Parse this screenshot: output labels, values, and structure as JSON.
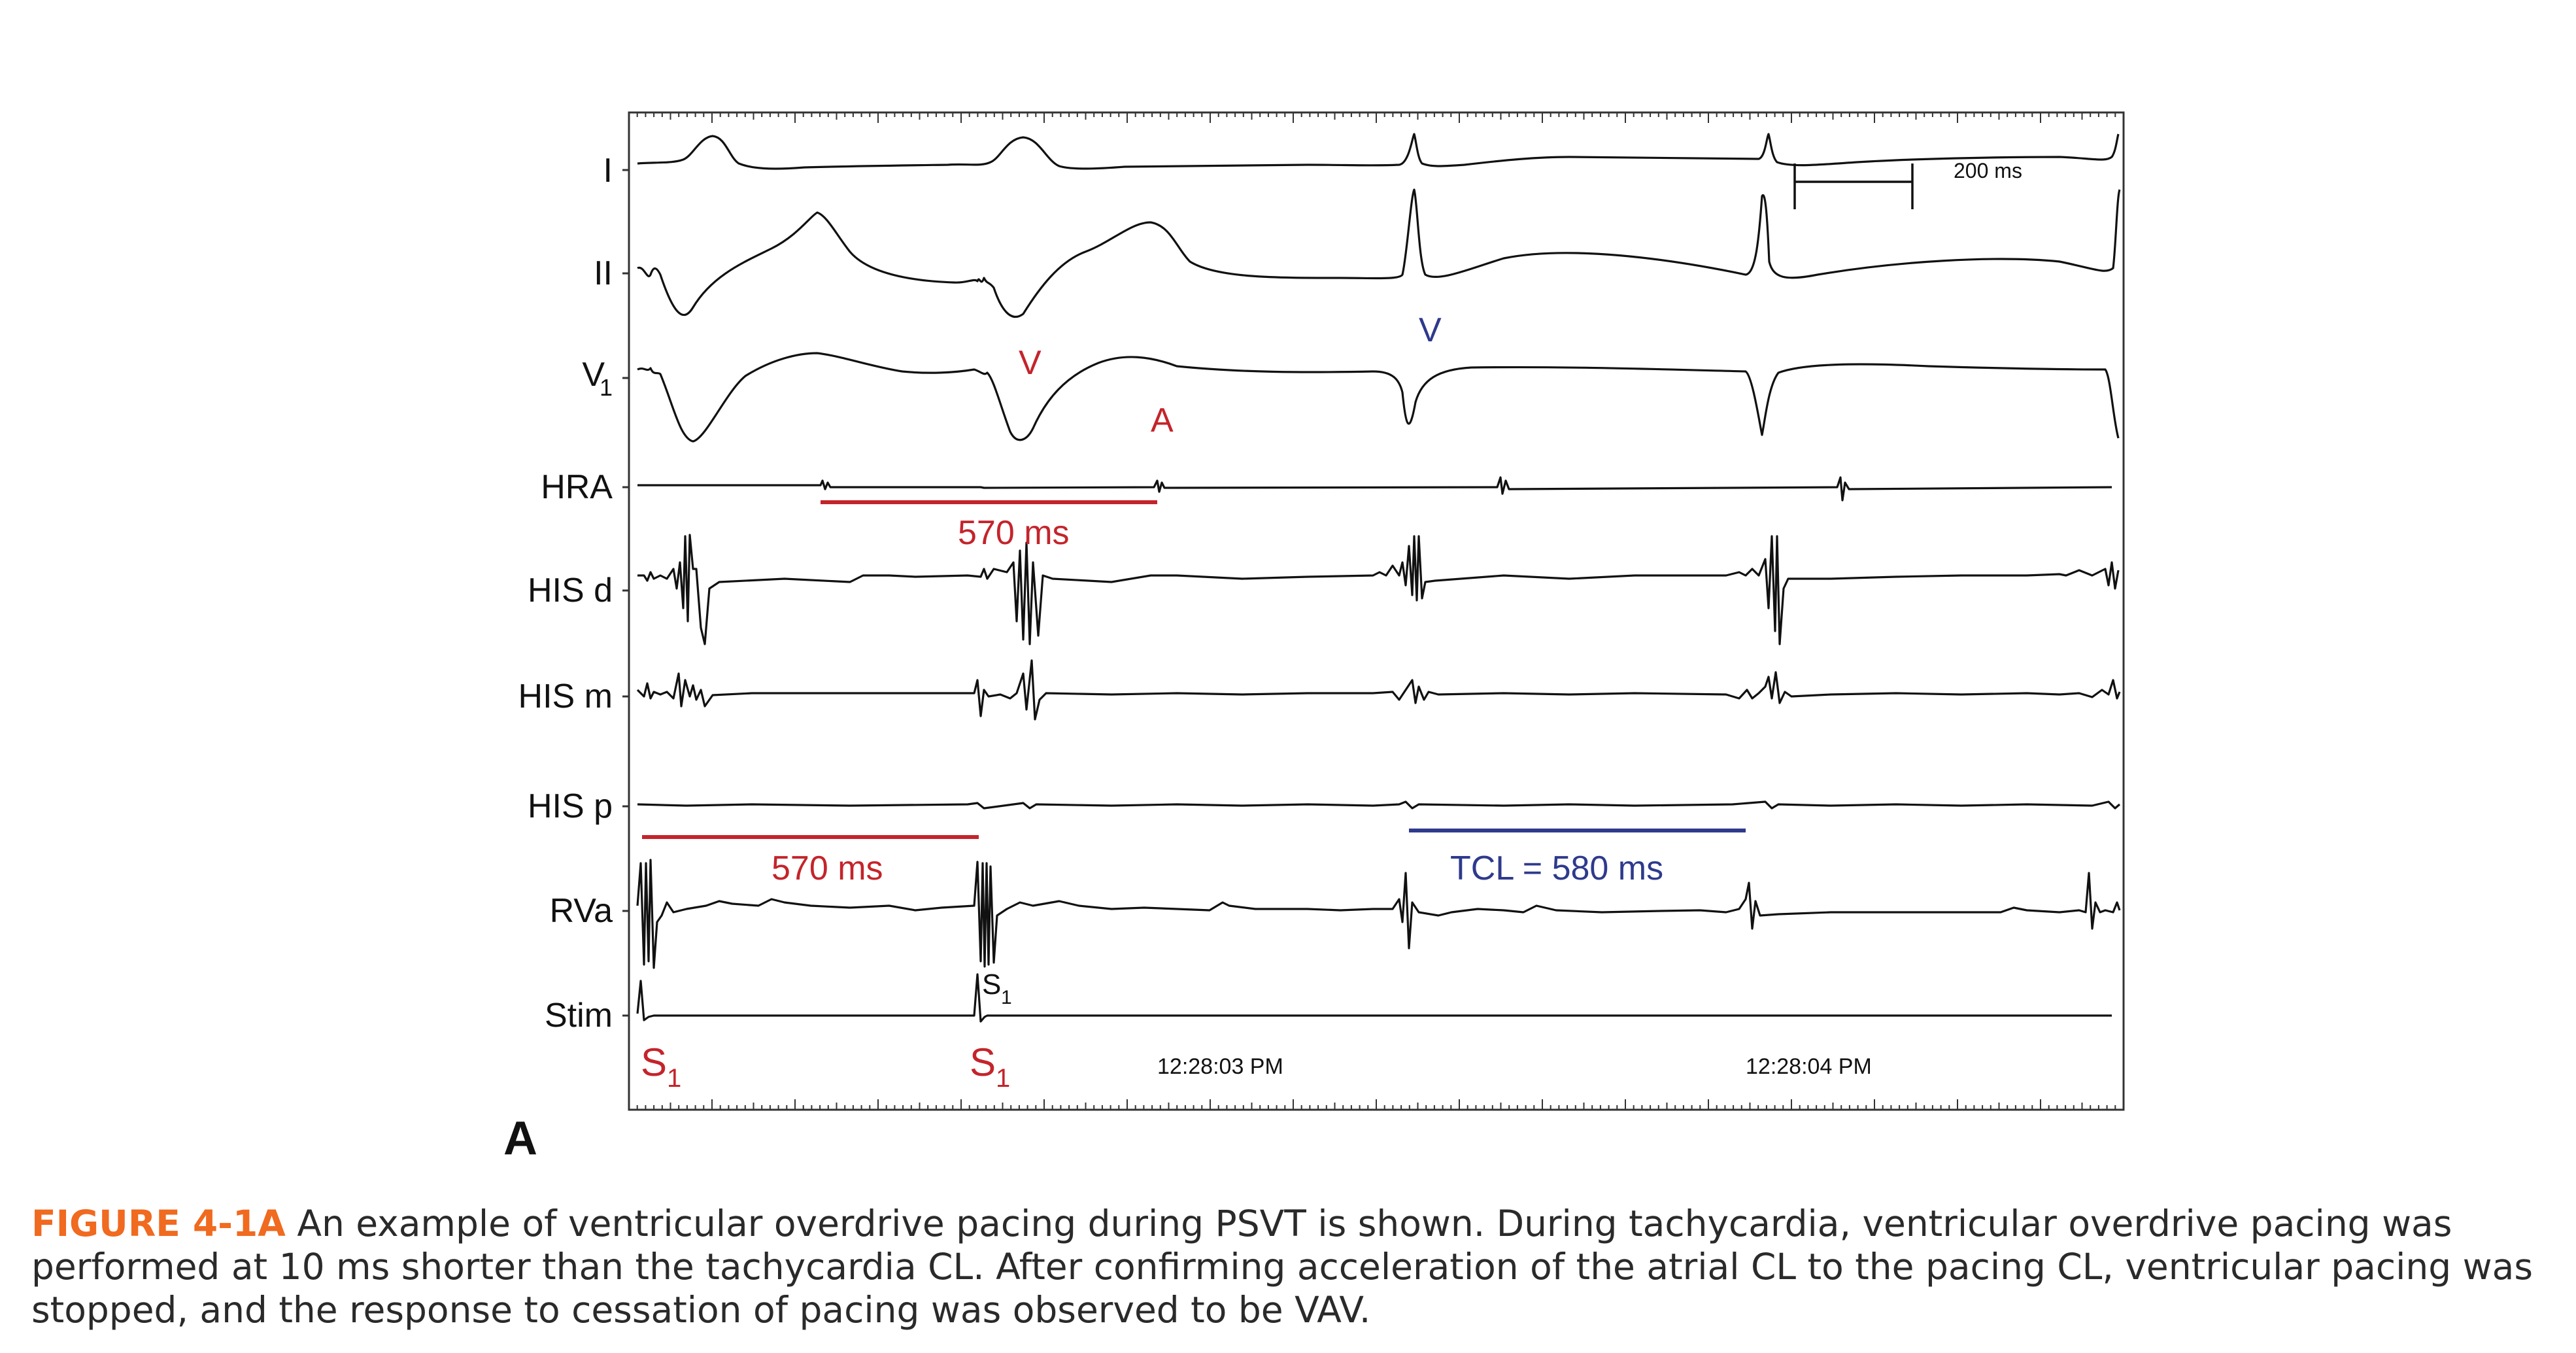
{
  "figure": {
    "channels": [
      "I",
      "II",
      "V1",
      "HRA",
      "HIS d",
      "HIS m",
      "HIS p",
      "RVa",
      "Stim"
    ],
    "scale_bar": {
      "label": "200 ms",
      "ms": 200
    },
    "timestamps": [
      "12:28:03 PM",
      "12:28:04 PM"
    ],
    "beat_labels": {
      "v_red": "V",
      "a_red": "A",
      "v_blue": "V",
      "s1_stim_channel": "S",
      "s1_main": "S",
      "s1_sub": "1"
    },
    "intervals": {
      "hra_interval": {
        "label": "570 ms",
        "ms": 570,
        "color": "#c4242b"
      },
      "rva_interval": {
        "label": "570 ms",
        "ms": 570,
        "color": "#c4242b"
      },
      "tcl_interval": {
        "label": "TCL = 580 ms",
        "ms": 580,
        "color": "#2e3a8c"
      }
    },
    "colors": {
      "red": "#c4242b",
      "blue": "#2e3a8c",
      "trace": "#111111"
    },
    "panel_letter": "A"
  },
  "caption": {
    "label": "FIGURE 4-1A",
    "text": "An example of ventricular overdrive pacing during PSVT is shown. During tachycardia, ventricular overdrive pacing was performed at 10 ms shorter than the tachycardia CL. After confirming acceleration of the atrial CL to the pacing CL, ventricular pacing was stopped, and the response to cessation of pacing was observed to be VAV."
  }
}
